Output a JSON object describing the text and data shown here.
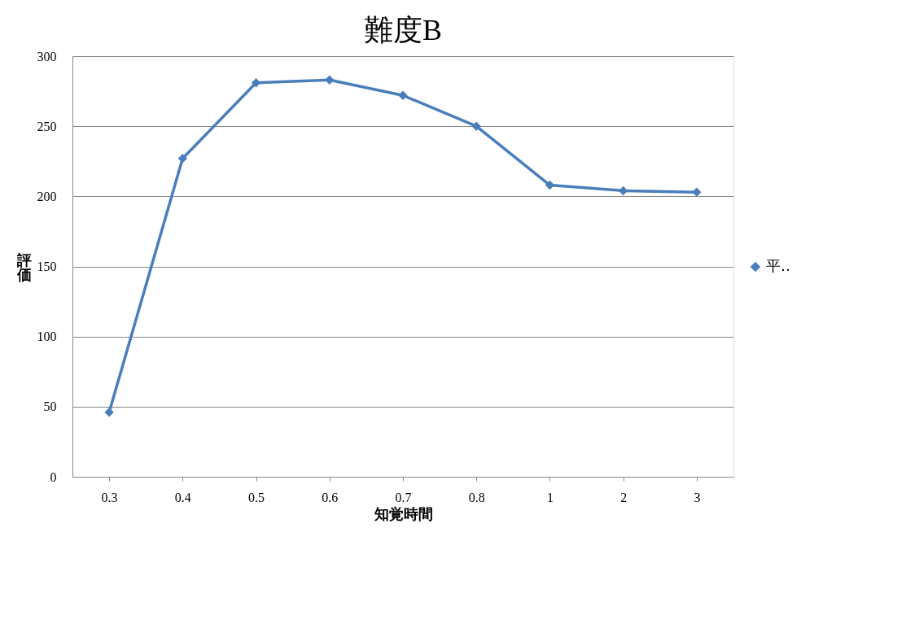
{
  "chart_data": {
    "type": "line",
    "title": "難度B",
    "xlabel": "知覚時間",
    "ylabel": "評価",
    "categories": [
      "0.3",
      "0.4",
      "0.5",
      "0.6",
      "0.7",
      "0.8",
      "1",
      "2",
      "3"
    ],
    "series": [
      {
        "name": "平‥",
        "color": "#4a7ebb",
        "values": [
          46,
          227,
          281,
          283,
          272,
          250,
          208,
          204,
          203
        ]
      }
    ],
    "ylim": [
      0,
      300
    ],
    "yticks": [
      0,
      50,
      100,
      150,
      200,
      250,
      300
    ],
    "grid": "y",
    "legend": "right",
    "marker": "diamond",
    "line_style": "solid"
  }
}
